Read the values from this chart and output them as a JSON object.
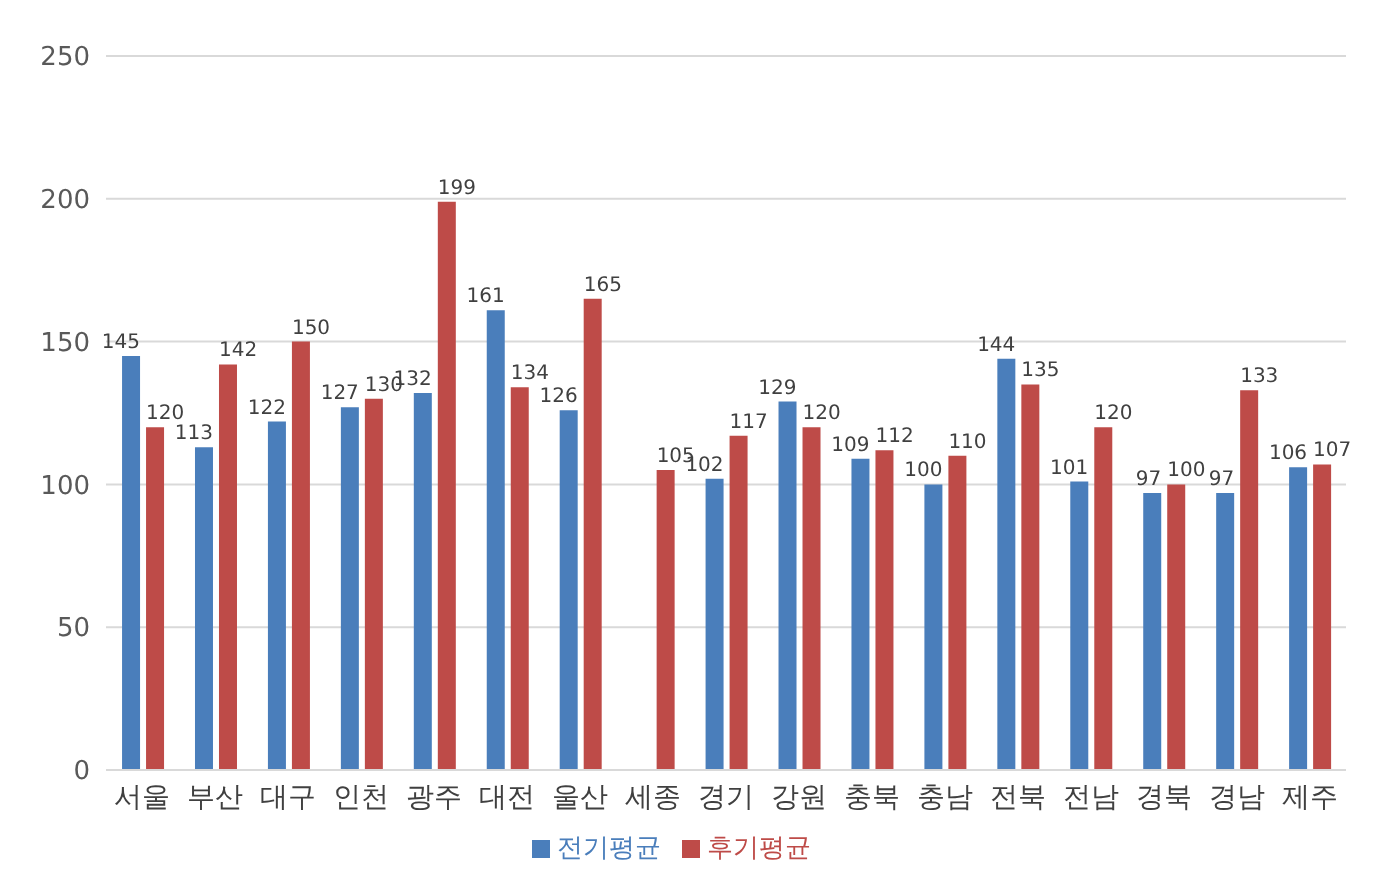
{
  "chart_data": {
    "type": "bar",
    "categories": [
      "서울",
      "부산",
      "대구",
      "인천",
      "광주",
      "대전",
      "울산",
      "세종",
      "경기",
      "강원",
      "충북",
      "충남",
      "전북",
      "전남",
      "경북",
      "경남",
      "제주"
    ],
    "series": [
      {
        "name": "전기평균",
        "color": "#4a7ebb",
        "values": [
          145,
          113,
          122,
          127,
          132,
          161,
          126,
          null,
          102,
          129,
          109,
          100,
          144,
          101,
          97,
          97,
          106
        ]
      },
      {
        "name": "후기평균",
        "color": "#be4b48",
        "values": [
          120,
          142,
          150,
          130,
          199,
          134,
          165,
          105,
          117,
          120,
          112,
          110,
          135,
          120,
          100,
          133,
          107
        ]
      }
    ],
    "ylim": [
      0,
      250
    ],
    "yticks": [
      0,
      50,
      100,
      150,
      200,
      250
    ],
    "grid": "y",
    "legend": "bottom",
    "data_labels": true
  }
}
